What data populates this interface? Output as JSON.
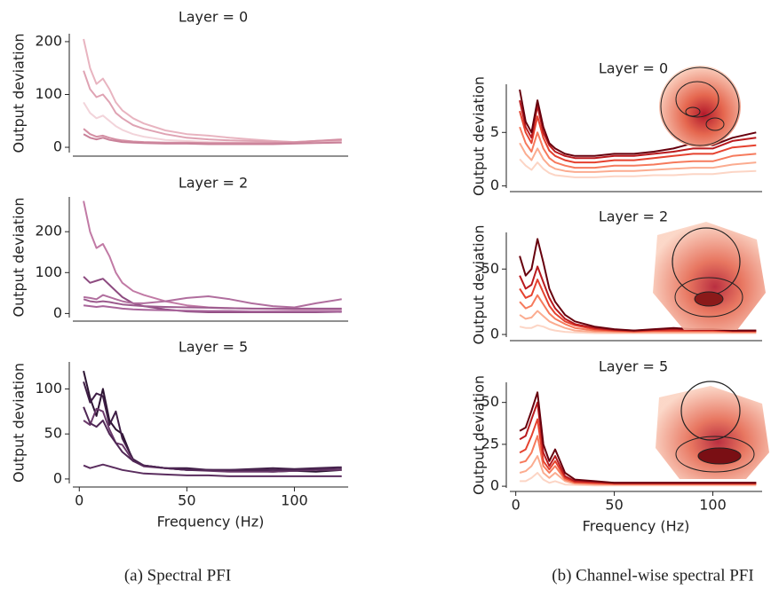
{
  "captions": [
    "(a) Spectral PFI",
    "(b) Channel-wise spectral PFI"
  ],
  "chart_data": [
    {
      "type": "line",
      "title": "Layer = 0",
      "y_label": "Output deviation",
      "x": [
        2,
        5,
        8,
        11,
        14,
        17,
        20,
        25,
        30,
        40,
        50,
        60,
        70,
        80,
        90,
        100,
        110,
        122
      ],
      "xlim": [
        -3,
        125
      ],
      "ylim": [
        -10,
        215
      ],
      "yticks": [
        0,
        100,
        200
      ],
      "series": [
        {
          "color": "#f2d4da",
          "values": [
            85,
            65,
            55,
            60,
            50,
            40,
            33,
            25,
            20,
            14,
            12,
            10,
            9,
            9,
            8,
            8,
            9,
            10
          ]
        },
        {
          "color": "#e8b4c0",
          "values": [
            205,
            150,
            120,
            130,
            110,
            85,
            70,
            55,
            45,
            32,
            25,
            22,
            18,
            15,
            12,
            10,
            12,
            14
          ]
        },
        {
          "color": "#dfa3b3",
          "values": [
            145,
            110,
            95,
            100,
            85,
            65,
            55,
            42,
            35,
            25,
            18,
            15,
            13,
            12,
            11,
            10,
            12,
            13
          ]
        },
        {
          "color": "#d48fa3",
          "values": [
            35,
            25,
            20,
            22,
            18,
            15,
            13,
            11,
            10,
            9,
            9,
            8,
            8,
            8,
            8,
            9,
            12,
            15
          ]
        },
        {
          "color": "#c98199",
          "values": [
            25,
            18,
            15,
            18,
            14,
            12,
            10,
            9,
            8,
            7,
            7,
            6,
            6,
            6,
            6,
            7,
            8,
            9
          ]
        }
      ]
    },
    {
      "type": "line",
      "title": "Layer = 2",
      "y_label": "Output deviation",
      "x": [
        2,
        5,
        8,
        11,
        14,
        17,
        20,
        25,
        30,
        40,
        50,
        60,
        70,
        80,
        90,
        100,
        110,
        122
      ],
      "xlim": [
        -3,
        125
      ],
      "ylim": [
        -10,
        285
      ],
      "yticks": [
        0,
        100,
        200
      ],
      "series": [
        {
          "color": "#c17aa5",
          "values": [
            275,
            200,
            160,
            170,
            140,
            100,
            75,
            55,
            45,
            30,
            20,
            15,
            13,
            12,
            11,
            10,
            10,
            10
          ]
        },
        {
          "color": "#8d4b80",
          "values": [
            90,
            75,
            80,
            85,
            70,
            55,
            40,
            25,
            18,
            10,
            5,
            3,
            3,
            3,
            3,
            3,
            3,
            4
          ]
        },
        {
          "color": "#b06e9e",
          "values": [
            40,
            38,
            35,
            45,
            40,
            35,
            30,
            25,
            25,
            30,
            38,
            42,
            35,
            25,
            18,
            15,
            25,
            35
          ]
        },
        {
          "color": "#9c5b8e",
          "values": [
            35,
            30,
            28,
            30,
            28,
            25,
            22,
            20,
            18,
            16,
            15,
            14,
            13,
            12,
            12,
            12,
            12,
            12
          ]
        },
        {
          "color": "#a8649a",
          "values": [
            20,
            18,
            16,
            18,
            16,
            14,
            12,
            10,
            9,
            8,
            7,
            6,
            6,
            5,
            5,
            5,
            5,
            5
          ]
        }
      ]
    },
    {
      "type": "line",
      "title": "Layer = 5",
      "y_label": "Output deviation",
      "x_label": "Frequency (Hz)",
      "x": [
        2,
        5,
        8,
        11,
        14,
        17,
        20,
        25,
        30,
        40,
        50,
        60,
        70,
        80,
        90,
        100,
        110,
        122
      ],
      "xlim": [
        -3,
        125
      ],
      "xticks": [
        0,
        50,
        100
      ],
      "ylim": [
        -5,
        130
      ],
      "yticks": [
        0,
        50,
        100
      ],
      "series": [
        {
          "color": "#2d1433",
          "values": [
            120,
            90,
            70,
            100,
            65,
            55,
            50,
            20,
            15,
            12,
            10,
            10,
            9,
            9,
            8,
            9,
            8,
            10
          ]
        },
        {
          "color": "#3e1d45",
          "values": [
            108,
            85,
            95,
            92,
            60,
            75,
            45,
            22,
            15,
            12,
            12,
            10,
            10,
            11,
            12,
            11,
            12,
            13
          ]
        },
        {
          "color": "#6b3a6b",
          "values": [
            65,
            60,
            78,
            75,
            55,
            40,
            38,
            20,
            14,
            12,
            10,
            9,
            8,
            8,
            8,
            9,
            10,
            10
          ]
        },
        {
          "color": "#4f2755",
          "values": [
            80,
            62,
            58,
            65,
            50,
            40,
            30,
            20,
            15,
            12,
            10,
            10,
            10,
            10,
            10,
            10,
            11,
            12
          ]
        },
        {
          "color": "#5a2d5e",
          "values": [
            15,
            12,
            14,
            16,
            14,
            12,
            10,
            8,
            6,
            5,
            4,
            4,
            3,
            3,
            3,
            3,
            3,
            3
          ]
        }
      ]
    },
    {
      "type": "line",
      "title": "Layer = 0",
      "y_label": "Output deviation",
      "x": [
        2,
        5,
        8,
        11,
        14,
        17,
        20,
        25,
        30,
        40,
        50,
        60,
        70,
        80,
        90,
        100,
        110,
        122
      ],
      "xlim": [
        -3,
        125
      ],
      "ylim": [
        -0.2,
        9.5
      ],
      "yticks": [
        0,
        5
      ],
      "series": [
        {
          "color": "#fcd5c5",
          "values": [
            2.5,
            1.9,
            1.5,
            2.2,
            1.6,
            1.2,
            1,
            0.9,
            0.8,
            0.8,
            0.9,
            0.9,
            1,
            1,
            1.1,
            1.1,
            1.3,
            1.4
          ]
        },
        {
          "color": "#fbac90",
          "values": [
            4,
            3,
            2.4,
            3.5,
            2.5,
            1.9,
            1.6,
            1.4,
            1.3,
            1.3,
            1.4,
            1.4,
            1.5,
            1.6,
            1.7,
            1.7,
            2,
            2.2
          ]
        },
        {
          "color": "#f67a5c",
          "values": [
            5.5,
            4,
            3.2,
            5,
            3.5,
            2.6,
            2.2,
            1.9,
            1.7,
            1.7,
            1.9,
            1.9,
            2,
            2.2,
            2.3,
            2.3,
            2.8,
            3
          ]
        },
        {
          "color": "#e5422f",
          "values": [
            7,
            5,
            4,
            6.5,
            4.5,
            3.3,
            2.8,
            2.4,
            2.2,
            2.2,
            2.4,
            2.4,
            2.6,
            2.8,
            3,
            3,
            3.6,
            3.8
          ]
        },
        {
          "color": "#b91a1e",
          "values": [
            8,
            5.5,
            4.5,
            7.5,
            5,
            3.8,
            3.2,
            2.8,
            2.6,
            2.6,
            2.8,
            2.8,
            3,
            3.2,
            3.5,
            3.5,
            4.2,
            4.5
          ]
        },
        {
          "color": "#67000d",
          "values": [
            9,
            6,
            5,
            8,
            5.5,
            4,
            3.5,
            3,
            2.8,
            2.8,
            3,
            3,
            3.2,
            3.5,
            4,
            3.8,
            4.5,
            5
          ]
        }
      ]
    },
    {
      "type": "line",
      "title": "Layer = 2",
      "y_label": "Output deviation",
      "x": [
        2,
        5,
        8,
        11,
        14,
        17,
        20,
        25,
        30,
        40,
        50,
        60,
        70,
        80,
        90,
        100,
        110,
        122
      ],
      "xlim": [
        -3,
        125
      ],
      "ylim": [
        -2,
        78
      ],
      "yticks": [
        0,
        50
      ],
      "series": [
        {
          "color": "#fcd5c5",
          "values": [
            6,
            5,
            5,
            7,
            6,
            4,
            3,
            2,
            1.5,
            1,
            1,
            1,
            1,
            1,
            1,
            1,
            1,
            1
          ]
        },
        {
          "color": "#fbac90",
          "values": [
            15,
            12,
            13,
            18,
            14,
            10,
            8,
            5,
            3,
            2,
            1.5,
            1.5,
            1.5,
            1.5,
            1.5,
            1.5,
            1.5,
            1.5
          ]
        },
        {
          "color": "#f67a5c",
          "values": [
            25,
            20,
            22,
            30,
            23,
            16,
            12,
            8,
            5,
            3,
            2.5,
            2,
            2.5,
            2.5,
            2.5,
            2.5,
            2,
            2
          ]
        },
        {
          "color": "#e5422f",
          "values": [
            35,
            28,
            30,
            42,
            32,
            22,
            16,
            10,
            7,
            4,
            3,
            2.5,
            3,
            3,
            3,
            3,
            2.5,
            2.5
          ]
        },
        {
          "color": "#b91a1e",
          "values": [
            45,
            35,
            38,
            52,
            40,
            28,
            20,
            12,
            8,
            5,
            3.5,
            3,
            3.5,
            4,
            3.5,
            3.5,
            3,
            3
          ]
        },
        {
          "color": "#67000d",
          "values": [
            60,
            45,
            50,
            73,
            55,
            35,
            25,
            15,
            10,
            6,
            4,
            3,
            4,
            5,
            4,
            4,
            3,
            3
          ]
        }
      ]
    },
    {
      "type": "line",
      "title": "Layer = 5",
      "y_label": "Output deviation",
      "x_label": "Frequency (Hz)",
      "x": [
        2,
        5,
        8,
        11,
        14,
        17,
        20,
        25,
        30,
        40,
        50,
        60,
        70,
        80,
        90,
        100,
        110,
        122
      ],
      "xlim": [
        -3,
        125
      ],
      "xticks": [
        0,
        50,
        100
      ],
      "ylim": [
        -1,
        62
      ],
      "yticks": [
        0,
        25,
        50
      ],
      "series": [
        {
          "color": "#fcd5c5",
          "values": [
            3,
            3,
            5,
            8,
            4,
            2,
            3,
            1,
            0.8,
            0.5,
            0.5,
            0.5,
            0.5,
            0.5,
            0.5,
            0.5,
            0.5,
            0.5
          ]
        },
        {
          "color": "#fbac90",
          "values": [
            8,
            9,
            12,
            18,
            8,
            5,
            8,
            3,
            1.5,
            1,
            1,
            1,
            1,
            1,
            1,
            1,
            1,
            1
          ]
        },
        {
          "color": "#f67a5c",
          "values": [
            14,
            15,
            20,
            30,
            12,
            8,
            12,
            4,
            2,
            1.5,
            1.2,
            1.2,
            1.2,
            1.2,
            1.2,
            1.2,
            1.2,
            1.2
          ]
        },
        {
          "color": "#e5422f",
          "values": [
            20,
            22,
            30,
            40,
            15,
            10,
            15,
            5,
            2.5,
            2,
            1.5,
            1.5,
            1.5,
            1.5,
            1.5,
            1.5,
            1.5,
            1.5
          ]
        },
        {
          "color": "#b91a1e",
          "values": [
            28,
            30,
            40,
            50,
            20,
            12,
            18,
            6,
            3,
            2.5,
            2,
            2,
            2,
            2,
            2,
            2,
            2,
            2
          ]
        },
        {
          "color": "#67000d",
          "values": [
            33,
            35,
            45,
            56,
            25,
            15,
            22,
            8,
            4,
            3,
            2,
            2,
            2,
            2,
            2,
            2,
            2,
            2
          ]
        }
      ]
    }
  ]
}
